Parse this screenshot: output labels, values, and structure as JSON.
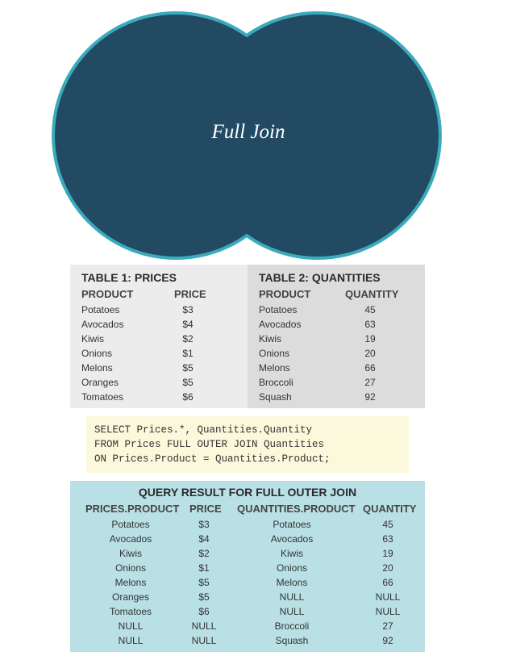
{
  "venn": {
    "title": "Full Join",
    "fill_color": "#224b63",
    "stroke_color": "#3aaabc"
  },
  "prices_table": {
    "title": "TABLE 1: PRICES",
    "headers": [
      "PRODUCT",
      "PRICE"
    ],
    "rows": [
      [
        "Potatoes",
        "$3"
      ],
      [
        "Avocados",
        "$4"
      ],
      [
        "Kiwis",
        "$2"
      ],
      [
        "Onions",
        "$1"
      ],
      [
        "Melons",
        "$5"
      ],
      [
        "Oranges",
        "$5"
      ],
      [
        "Tomatoes",
        "$6"
      ]
    ]
  },
  "quantities_table": {
    "title": "TABLE 2: QUANTITIES",
    "headers": [
      "PRODUCT",
      "QUANTITY"
    ],
    "rows": [
      [
        "Potatoes",
        "45"
      ],
      [
        "Avocados",
        "63"
      ],
      [
        "Kiwis",
        "19"
      ],
      [
        "Onions",
        "20"
      ],
      [
        "Melons",
        "66"
      ],
      [
        "Broccoli",
        "27"
      ],
      [
        "Squash",
        "92"
      ]
    ]
  },
  "sql": {
    "lines": [
      "SELECT Prices.*, Quantities.Quantity",
      "FROM Prices FULL OUTER JOIN Quantities",
      "ON Prices.Product = Quantities.Product;"
    ]
  },
  "result": {
    "title": "QUERY RESULT FOR FULL OUTER JOIN",
    "headers": [
      "PRICES.PRODUCT",
      "PRICE",
      "QUANTITIES.PRODUCT",
      "QUANTITY"
    ],
    "rows": [
      [
        "Potatoes",
        "$3",
        "Potatoes",
        "45"
      ],
      [
        "Avocados",
        "$4",
        "Avocados",
        "63"
      ],
      [
        "Kiwis",
        "$2",
        "Kiwis",
        "19"
      ],
      [
        "Onions",
        "$1",
        "Onions",
        "20"
      ],
      [
        "Melons",
        "$5",
        "Melons",
        "66"
      ],
      [
        "Oranges",
        "$5",
        "NULL",
        "NULL"
      ],
      [
        "Tomatoes",
        "$6",
        "NULL",
        "NULL"
      ],
      [
        "NULL",
        "NULL",
        "Broccoli",
        "27"
      ],
      [
        "NULL",
        "NULL",
        "Squash",
        "92"
      ]
    ]
  },
  "colors": {
    "prices_bg": "#ececec",
    "quantities_bg": "#dcdcdc",
    "sql_bg": "#fbf8dc",
    "result_bg": "#b9e0e5"
  }
}
